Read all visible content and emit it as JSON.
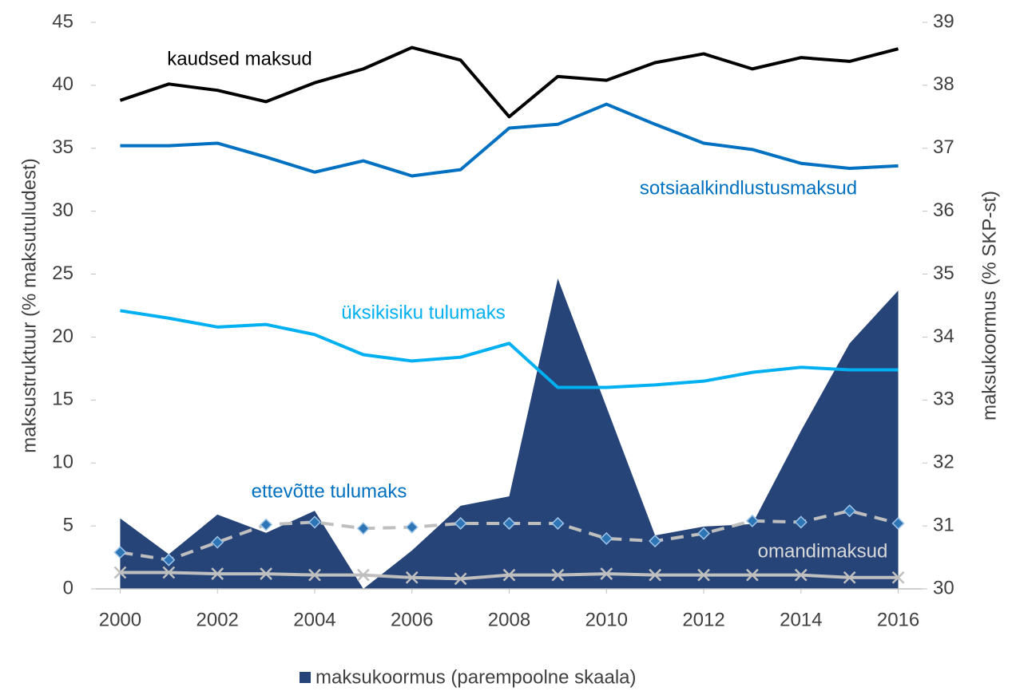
{
  "chart_data": {
    "type": "line",
    "x": [
      2000,
      2001,
      2002,
      2003,
      2004,
      2005,
      2006,
      2007,
      2008,
      2009,
      2010,
      2011,
      2012,
      2013,
      2014,
      2015,
      2016
    ],
    "xlim": [
      1999.5,
      2016.5
    ],
    "xticks": [
      2000,
      2002,
      2004,
      2006,
      2008,
      2010,
      2012,
      2014,
      2016
    ],
    "ylim": [
      0,
      45
    ],
    "yticks": [
      0,
      5,
      10,
      15,
      20,
      25,
      30,
      35,
      40,
      45
    ],
    "y2lim": [
      30,
      39
    ],
    "y2ticks": [
      30,
      31,
      32,
      33,
      34,
      35,
      36,
      37,
      38,
      39
    ],
    "ylabel": "maksustruktuur  (% maksutuludest)",
    "y2label": "maksukoormus  (% SKP-st)",
    "legend": "bottom",
    "series": [
      {
        "name": "maksukoormus (parempoolne skaala)",
        "type": "area",
        "axis": "y2",
        "color": "#264478",
        "values": [
          31.12,
          30.55,
          31.18,
          30.89,
          31.24,
          30.0,
          30.61,
          31.32,
          31.47,
          34.93,
          32.89,
          30.85,
          30.99,
          31.03,
          32.51,
          33.9,
          34.74
        ]
      },
      {
        "name": "kaudsed maksud",
        "type": "line",
        "color": "#000000",
        "values": [
          38.8,
          40.1,
          39.6,
          38.7,
          40.2,
          41.3,
          43.0,
          42.0,
          37.5,
          40.7,
          40.4,
          41.8,
          42.5,
          41.3,
          42.2,
          41.9,
          42.9
        ]
      },
      {
        "name": "sotsiaalkindlustusmaksud",
        "type": "line",
        "color": "#0070c0",
        "values": [
          35.2,
          35.2,
          35.4,
          34.3,
          33.1,
          34.0,
          32.8,
          33.3,
          36.6,
          36.9,
          38.5,
          36.9,
          35.4,
          34.9,
          33.8,
          33.4,
          33.6
        ]
      },
      {
        "name": "üksikisiku tulumaks",
        "type": "line",
        "color": "#00b0f0",
        "values": [
          22.1,
          21.5,
          20.8,
          21.0,
          20.2,
          18.6,
          18.1,
          18.4,
          19.5,
          16.0,
          16.0,
          16.2,
          16.5,
          17.2,
          17.6,
          17.4,
          17.4
        ]
      },
      {
        "name": "ettevõtte tulumaks",
        "type": "line",
        "color": "#bfbfbf",
        "dash": true,
        "marker": "diamond",
        "marker_color": "#2e75b6",
        "label_color": "#0070c0",
        "values": [
          2.9,
          2.3,
          3.7,
          5.1,
          5.3,
          4.8,
          4.9,
          5.2,
          5.2,
          5.2,
          4.0,
          3.8,
          4.4,
          5.4,
          5.3,
          6.2,
          5.2
        ]
      },
      {
        "name": "omandimaksud",
        "type": "line",
        "color": "#bfbfbf",
        "marker": "x",
        "marker_color": "#bfbfbf",
        "label_color": "#d9d9d9",
        "values": [
          1.3,
          1.3,
          1.2,
          1.2,
          1.1,
          1.1,
          0.9,
          0.8,
          1.1,
          1.1,
          1.2,
          1.1,
          1.1,
          1.1,
          1.1,
          0.9,
          0.9
        ]
      }
    ]
  }
}
